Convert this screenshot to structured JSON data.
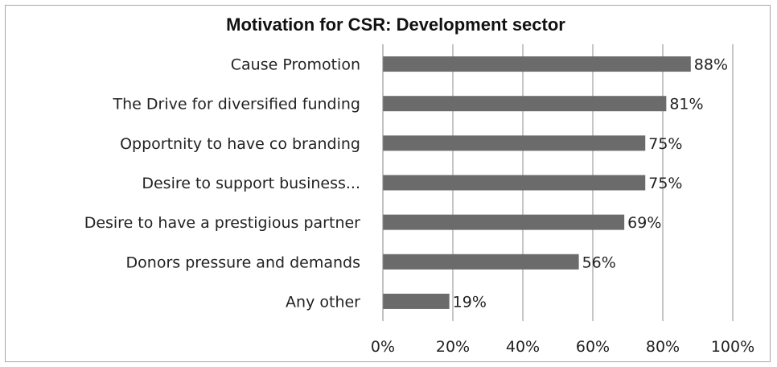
{
  "chart_data": {
    "type": "bar",
    "orientation": "horizontal",
    "title": "Motivation for CSR: Development sector",
    "categories": [
      "Cause Promotion",
      "The Drive for diversified funding",
      "Opportnity to have co branding",
      "Desire to support business...",
      "Desire to have a prestigious partner",
      "Donors pressure and demands",
      "Any other"
    ],
    "values": [
      88,
      81,
      75,
      75,
      69,
      56,
      19
    ],
    "data_labels": [
      "88%",
      "81%",
      "75%",
      "75%",
      "69%",
      "56%",
      "19%"
    ],
    "xlim": [
      0,
      100
    ],
    "x_ticks": [
      0,
      20,
      40,
      60,
      80,
      100
    ],
    "x_tick_labels": [
      "0%",
      "20%",
      "40%",
      "60%",
      "80%",
      "100%"
    ],
    "grid": "vertical",
    "legend": "none",
    "bar_color": "#6b6b6b"
  }
}
